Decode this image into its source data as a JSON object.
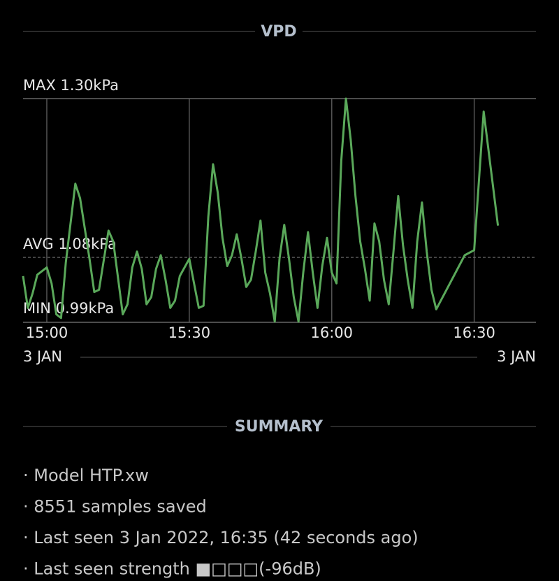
{
  "header": {
    "title": "VPD"
  },
  "chart_data": {
    "type": "line",
    "color": "#5aa85a",
    "x": [
      "14:55",
      "14:56",
      "14:57",
      "14:58",
      "15:00",
      "15:01",
      "15:02",
      "15:03",
      "15:04",
      "15:06",
      "15:07",
      "15:09",
      "15:10",
      "15:11",
      "15:13",
      "15:14",
      "15:16",
      "15:17",
      "15:18",
      "15:19",
      "15:20",
      "15:21",
      "15:22",
      "15:23",
      "15:24",
      "15:25",
      "15:26",
      "15:27",
      "15:28",
      "15:30",
      "15:32",
      "15:33",
      "15:34",
      "15:35",
      "15:36",
      "15:37",
      "15:38",
      "15:39",
      "15:40",
      "15:41",
      "15:42",
      "15:43",
      "15:44",
      "15:45",
      "15:46",
      "15:47",
      "15:48",
      "15:49",
      "15:50",
      "15:51",
      "15:52",
      "15:53",
      "15:54",
      "15:55",
      "15:56",
      "15:57",
      "15:58",
      "15:59",
      "16:00",
      "16:01",
      "16:02",
      "16:03",
      "16:04",
      "16:05",
      "16:06",
      "16:07",
      "16:08",
      "16:09",
      "16:10",
      "16:11",
      "16:12",
      "16:13",
      "16:14",
      "16:15",
      "16:16",
      "16:17",
      "16:18",
      "16:19",
      "16:20",
      "16:21",
      "16:22",
      "16:28",
      "16:30",
      "16:32",
      "16:35"
    ],
    "values": [
      1.054,
      1.01,
      1.03,
      1.056,
      1.066,
      1.044,
      1.001,
      0.996,
      1.073,
      1.182,
      1.162,
      1.078,
      1.032,
      1.035,
      1.117,
      1.102,
      1.001,
      1.015,
      1.066,
      1.088,
      1.064,
      1.015,
      1.025,
      1.064,
      1.083,
      1.049,
      1.01,
      1.02,
      1.054,
      1.078,
      1.01,
      1.013,
      1.136,
      1.209,
      1.17,
      1.107,
      1.068,
      1.083,
      1.112,
      1.078,
      1.039,
      1.049,
      1.088,
      1.131,
      1.059,
      1.03,
      0.991,
      1.078,
      1.125,
      1.078,
      1.025,
      0.991,
      1.059,
      1.115,
      1.059,
      1.01,
      1.068,
      1.107,
      1.059,
      1.044,
      1.214,
      1.3,
      1.243,
      1.165,
      1.102,
      1.064,
      1.02,
      1.127,
      1.102,
      1.049,
      1.015,
      1.088,
      1.165,
      1.097,
      1.049,
      1.01,
      1.102,
      1.156,
      1.088,
      1.035,
      1.008,
      1.083,
      1.09,
      1.282,
      1.124
    ],
    "xlim": [
      "14:55",
      "16:43"
    ],
    "xticks": [
      "15:00",
      "15:30",
      "16:00",
      "16:30"
    ],
    "ylim": [
      0.99,
      1.3
    ],
    "max": {
      "value": 1.3,
      "label": "MAX 1.30kPa"
    },
    "avg": {
      "value": 1.08,
      "label": "AVG 1.08kPa"
    },
    "min": {
      "value": 0.99,
      "label": "MIN 0.99kPa"
    },
    "date_start": "3 JAN",
    "date_end": "3 JAN",
    "grid": true
  },
  "summary": {
    "title": "SUMMARY",
    "items": [
      "· Model HTP.xw",
      "· 8551 samples saved",
      "· Last seen 3 Jan 2022, 16:35 (42 seconds ago)",
      "· Last seen strength  ■□□□(-96dB)"
    ]
  }
}
